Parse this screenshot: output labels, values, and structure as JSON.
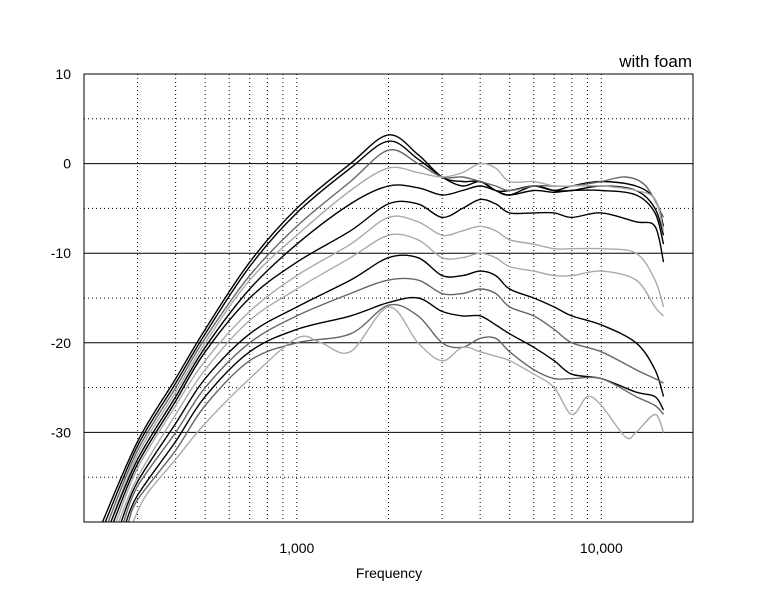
{
  "chart_data": {
    "type": "line",
    "title": "",
    "annotation": "with foam",
    "xlabel": "Frequency",
    "ylabel": "",
    "x_scale": "log",
    "xlim": [
      200,
      20000
    ],
    "ylim": [
      -40,
      10
    ],
    "x_tick_labels": [
      {
        "value": 1000,
        "label": "1,000"
      },
      {
        "value": 10000,
        "label": "10,000"
      }
    ],
    "y_tick_labels": [
      {
        "value": 10,
        "label": "10"
      },
      {
        "value": 0,
        "label": "0"
      },
      {
        "value": -10,
        "label": "-10"
      },
      {
        "value": -20,
        "label": "-20"
      },
      {
        "value": -30,
        "label": "-30"
      }
    ],
    "grid": {
      "major_solid_y": [
        10,
        0,
        -10,
        -20,
        -30
      ],
      "minor_dotted_y": [
        5,
        -5,
        -15,
        -25,
        -35
      ],
      "x_dotted": true
    },
    "legend": "none",
    "series": [
      {
        "color": "#000000",
        "points": [
          [
            230,
            -40
          ],
          [
            300,
            -31
          ],
          [
            400,
            -24
          ],
          [
            500,
            -18.5
          ],
          [
            700,
            -11
          ],
          [
            1000,
            -5
          ],
          [
            1500,
            0
          ],
          [
            2000,
            3.2
          ],
          [
            2500,
            1
          ],
          [
            3000,
            -1.5
          ],
          [
            3500,
            -2
          ],
          [
            4000,
            -2
          ],
          [
            4500,
            -3
          ],
          [
            5000,
            -3
          ],
          [
            6000,
            -2.5
          ],
          [
            7000,
            -3
          ],
          [
            8000,
            -2.5
          ],
          [
            10000,
            -2
          ],
          [
            13000,
            -2.5
          ],
          [
            15000,
            -4
          ],
          [
            16000,
            -7
          ]
        ]
      },
      {
        "color": "#000000",
        "points": [
          [
            235,
            -40
          ],
          [
            300,
            -31.5
          ],
          [
            400,
            -24.5
          ],
          [
            500,
            -19
          ],
          [
            700,
            -11.5
          ],
          [
            1000,
            -5.5
          ],
          [
            1500,
            -0.5
          ],
          [
            2000,
            2.5
          ],
          [
            2500,
            0.5
          ],
          [
            3000,
            -1.5
          ],
          [
            3500,
            -2.5
          ],
          [
            4000,
            -2
          ],
          [
            4500,
            -3
          ],
          [
            5000,
            -3.5
          ],
          [
            6000,
            -2.5
          ],
          [
            7000,
            -3
          ],
          [
            8000,
            -3
          ],
          [
            10000,
            -2.5
          ],
          [
            13000,
            -3
          ],
          [
            15000,
            -5
          ],
          [
            16000,
            -8
          ]
        ]
      },
      {
        "color": "#666666",
        "points": [
          [
            240,
            -40
          ],
          [
            300,
            -32
          ],
          [
            400,
            -25
          ],
          [
            500,
            -19.5
          ],
          [
            700,
            -12.5
          ],
          [
            1000,
            -7
          ],
          [
            1500,
            -2
          ],
          [
            2000,
            1.5
          ],
          [
            2500,
            0
          ],
          [
            3000,
            -1.5
          ],
          [
            3500,
            -1.5
          ],
          [
            4000,
            -2
          ],
          [
            4500,
            -2.5
          ],
          [
            5000,
            -3
          ],
          [
            6000,
            -2.5
          ],
          [
            7000,
            -2.5
          ],
          [
            8000,
            -2.5
          ],
          [
            10000,
            -2
          ],
          [
            12000,
            -1.5
          ],
          [
            14000,
            -2.5
          ],
          [
            16000,
            -6
          ]
        ]
      },
      {
        "color": "#aaaaaa",
        "points": [
          [
            245,
            -40
          ],
          [
            300,
            -32.5
          ],
          [
            400,
            -25.5
          ],
          [
            500,
            -20
          ],
          [
            700,
            -13
          ],
          [
            1000,
            -8
          ],
          [
            1500,
            -3
          ],
          [
            2000,
            -0.5
          ],
          [
            2500,
            -1
          ],
          [
            3000,
            -1.5
          ],
          [
            3500,
            -1
          ],
          [
            4000,
            0
          ],
          [
            4500,
            -0.5
          ],
          [
            5000,
            -2
          ],
          [
            6000,
            -2
          ],
          [
            7000,
            -2.5
          ],
          [
            8000,
            -2.5
          ],
          [
            10000,
            -2.5
          ],
          [
            13000,
            -3
          ],
          [
            15000,
            -4
          ],
          [
            16000,
            -7.5
          ]
        ]
      },
      {
        "color": "#000000",
        "points": [
          [
            245,
            -40
          ],
          [
            300,
            -33
          ],
          [
            400,
            -26
          ],
          [
            500,
            -20.5
          ],
          [
            700,
            -14
          ],
          [
            1000,
            -9
          ],
          [
            1500,
            -4.5
          ],
          [
            2000,
            -2.5
          ],
          [
            2500,
            -2.7
          ],
          [
            3000,
            -3.5
          ],
          [
            3500,
            -3
          ],
          [
            4000,
            -2.5
          ],
          [
            4500,
            -3
          ],
          [
            5000,
            -3.5
          ],
          [
            6000,
            -3
          ],
          [
            7000,
            -3.2
          ],
          [
            8000,
            -3
          ],
          [
            10000,
            -3
          ],
          [
            13000,
            -3.5
          ],
          [
            15000,
            -5.5
          ],
          [
            16000,
            -9
          ]
        ]
      },
      {
        "color": "#000000",
        "points": [
          [
            250,
            -40
          ],
          [
            300,
            -33.5
          ],
          [
            400,
            -26.5
          ],
          [
            500,
            -21
          ],
          [
            700,
            -15
          ],
          [
            1000,
            -11
          ],
          [
            1500,
            -7.5
          ],
          [
            2000,
            -4.5
          ],
          [
            2500,
            -4.5
          ],
          [
            3000,
            -6
          ],
          [
            3500,
            -5
          ],
          [
            4000,
            -4
          ],
          [
            4500,
            -4.5
          ],
          [
            5000,
            -5.5
          ],
          [
            6000,
            -5.5
          ],
          [
            7000,
            -5.5
          ],
          [
            8000,
            -6
          ],
          [
            10000,
            -5.5
          ],
          [
            13000,
            -6.5
          ],
          [
            15000,
            -7
          ],
          [
            16000,
            -11
          ]
        ]
      },
      {
        "color": "#aaaaaa",
        "points": [
          [
            255,
            -40
          ],
          [
            300,
            -34
          ],
          [
            400,
            -27
          ],
          [
            500,
            -22
          ],
          [
            700,
            -16.5
          ],
          [
            1000,
            -12.5
          ],
          [
            1500,
            -9
          ],
          [
            2000,
            -6
          ],
          [
            2500,
            -6.5
          ],
          [
            3000,
            -8
          ],
          [
            3500,
            -7.5
          ],
          [
            4000,
            -7
          ],
          [
            4500,
            -7.5
          ],
          [
            5000,
            -8.5
          ],
          [
            6000,
            -9
          ],
          [
            7000,
            -9.5
          ],
          [
            8000,
            -9.5
          ],
          [
            10000,
            -9.5
          ],
          [
            13000,
            -10
          ],
          [
            15000,
            -13
          ],
          [
            16000,
            -16
          ]
        ]
      },
      {
        "color": "#aaaaaa",
        "points": [
          [
            260,
            -40
          ],
          [
            300,
            -35
          ],
          [
            400,
            -28
          ],
          [
            500,
            -23
          ],
          [
            700,
            -17.5
          ],
          [
            1000,
            -14
          ],
          [
            1500,
            -10.5
          ],
          [
            2000,
            -8
          ],
          [
            2500,
            -8.5
          ],
          [
            3000,
            -10.5
          ],
          [
            3500,
            -10.5
          ],
          [
            4000,
            -10
          ],
          [
            4500,
            -10.5
          ],
          [
            5000,
            -11.5
          ],
          [
            6000,
            -12
          ],
          [
            7000,
            -12.5
          ],
          [
            8000,
            -12.5
          ],
          [
            10000,
            -12
          ],
          [
            13000,
            -13
          ],
          [
            15000,
            -16
          ],
          [
            16000,
            -17
          ]
        ]
      },
      {
        "color": "#000000",
        "points": [
          [
            265,
            -40
          ],
          [
            300,
            -35.5
          ],
          [
            400,
            -29
          ],
          [
            500,
            -24
          ],
          [
            700,
            -19
          ],
          [
            1000,
            -16
          ],
          [
            1500,
            -13
          ],
          [
            2000,
            -10.5
          ],
          [
            2500,
            -10.5
          ],
          [
            3000,
            -12.5
          ],
          [
            3500,
            -12.5
          ],
          [
            4000,
            -12
          ],
          [
            4500,
            -12.5
          ],
          [
            5000,
            -14
          ],
          [
            6000,
            -15
          ],
          [
            7000,
            -16
          ],
          [
            8000,
            -17
          ],
          [
            10000,
            -18
          ],
          [
            13000,
            -20
          ],
          [
            15000,
            -23
          ],
          [
            16000,
            -26
          ]
        ]
      },
      {
        "color": "#666666",
        "points": [
          [
            270,
            -40
          ],
          [
            300,
            -36
          ],
          [
            400,
            -30
          ],
          [
            500,
            -25
          ],
          [
            700,
            -20
          ],
          [
            1000,
            -17
          ],
          [
            1500,
            -14.5
          ],
          [
            2000,
            -13
          ],
          [
            2500,
            -13
          ],
          [
            3000,
            -14.5
          ],
          [
            3500,
            -14.5
          ],
          [
            4000,
            -14
          ],
          [
            4500,
            -14.5
          ],
          [
            5000,
            -16
          ],
          [
            6000,
            -17
          ],
          [
            7000,
            -18.5
          ],
          [
            8000,
            -20
          ],
          [
            10000,
            -21
          ],
          [
            13000,
            -23
          ],
          [
            15000,
            -24
          ],
          [
            16000,
            -24.5
          ]
        ]
      },
      {
        "color": "#000000",
        "points": [
          [
            275,
            -40
          ],
          [
            300,
            -37
          ],
          [
            400,
            -31
          ],
          [
            500,
            -26
          ],
          [
            700,
            -21
          ],
          [
            1000,
            -18.5
          ],
          [
            1500,
            -17
          ],
          [
            2000,
            -15.5
          ],
          [
            2500,
            -15
          ],
          [
            3000,
            -16.5
          ],
          [
            3500,
            -17
          ],
          [
            4000,
            -17
          ],
          [
            4500,
            -18
          ],
          [
            5000,
            -19
          ],
          [
            6000,
            -20.5
          ],
          [
            7000,
            -22
          ],
          [
            8000,
            -23.5
          ],
          [
            10000,
            -24
          ],
          [
            13000,
            -25.5
          ],
          [
            15000,
            -26
          ],
          [
            16000,
            -27.5
          ]
        ]
      },
      {
        "color": "#666666",
        "points": [
          [
            280,
            -40
          ],
          [
            300,
            -37.5
          ],
          [
            400,
            -32
          ],
          [
            500,
            -27
          ],
          [
            700,
            -22
          ],
          [
            1000,
            -20
          ],
          [
            1500,
            -19
          ],
          [
            2000,
            -15.8
          ],
          [
            2500,
            -17
          ],
          [
            3000,
            -20
          ],
          [
            3500,
            -20.5
          ],
          [
            4000,
            -19.5
          ],
          [
            4500,
            -19.5
          ],
          [
            5000,
            -21
          ],
          [
            6000,
            -23
          ],
          [
            7000,
            -24
          ],
          [
            8000,
            -24
          ],
          [
            10000,
            -24
          ],
          [
            13000,
            -26
          ],
          [
            15000,
            -27
          ],
          [
            16000,
            -28
          ]
        ]
      },
      {
        "color": "#aaaaaa",
        "points": [
          [
            290,
            -40
          ],
          [
            320,
            -37
          ],
          [
            400,
            -33
          ],
          [
            500,
            -29
          ],
          [
            700,
            -24
          ],
          [
            1000,
            -19.5
          ],
          [
            1200,
            -20
          ],
          [
            1500,
            -21
          ],
          [
            2000,
            -16
          ],
          [
            2500,
            -20
          ],
          [
            3000,
            -22
          ],
          [
            3500,
            -20.5
          ],
          [
            4000,
            -21
          ],
          [
            4500,
            -21.5
          ],
          [
            5000,
            -22
          ],
          [
            6000,
            -23.5
          ],
          [
            7000,
            -25
          ],
          [
            8000,
            -28
          ],
          [
            9000,
            -26
          ],
          [
            10000,
            -27
          ],
          [
            12000,
            -30.5
          ],
          [
            13000,
            -30
          ],
          [
            15000,
            -28
          ],
          [
            16000,
            -30
          ]
        ]
      }
    ]
  }
}
